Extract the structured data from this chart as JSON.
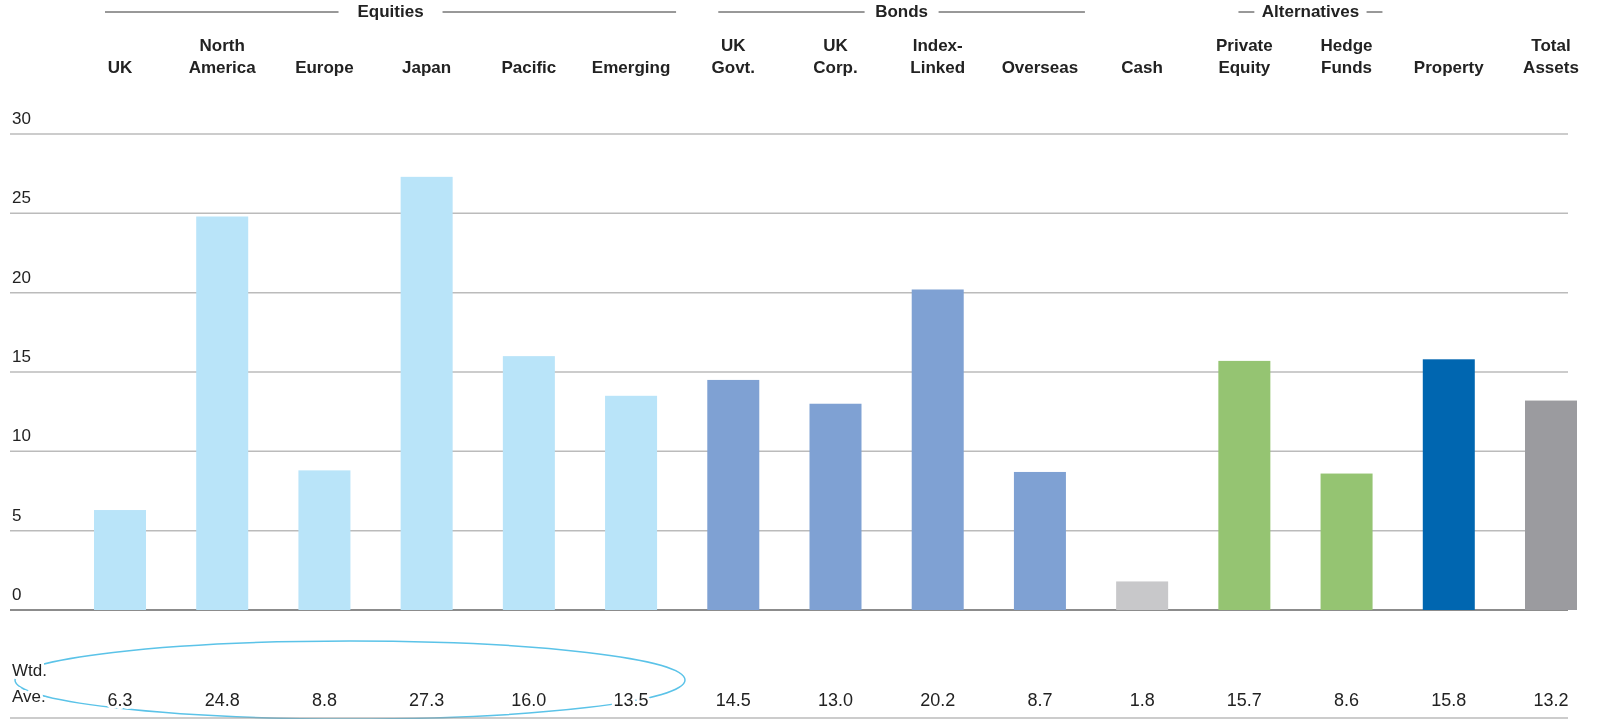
{
  "chart_data": {
    "type": "bar",
    "categories": [
      "UK",
      "North\nAmerica",
      "Europe",
      "Japan",
      "Pacific",
      "Emerging",
      "UK\nGovt.",
      "UK\nCorp.",
      "Index-\nLinked",
      "Overseas",
      "Cash",
      "Private\nEquity",
      "Hedge\nFunds",
      "Property",
      "Total\nAssets"
    ],
    "values": [
      6.3,
      24.8,
      8.8,
      27.3,
      16.0,
      13.5,
      14.5,
      13.0,
      20.2,
      8.7,
      1.8,
      15.7,
      8.6,
      15.8,
      13.2
    ],
    "value_labels": [
      "6.3",
      "24.8",
      "8.8",
      "27.3",
      "16.0",
      "13.5",
      "14.5",
      "13.0",
      "20.2",
      "8.7",
      "1.8",
      "15.7",
      "8.6",
      "15.8",
      "13.2"
    ],
    "colors": [
      "#b9e4f9",
      "#b9e4f9",
      "#b9e4f9",
      "#b9e4f9",
      "#b9e4f9",
      "#b9e4f9",
      "#7fa1d3",
      "#7fa1d3",
      "#7fa1d3",
      "#7fa1d3",
      "#c8c8ca",
      "#95c472",
      "#95c472",
      "#0066b0",
      "#9b9b9f"
    ],
    "ylim": [
      0,
      30
    ],
    "yticks": [
      0,
      5,
      10,
      15,
      20,
      25,
      30
    ],
    "grid": "y",
    "annotations": [
      "Equities",
      "Bonds",
      "Alternatives",
      "Wtd.\nAve."
    ]
  }
}
